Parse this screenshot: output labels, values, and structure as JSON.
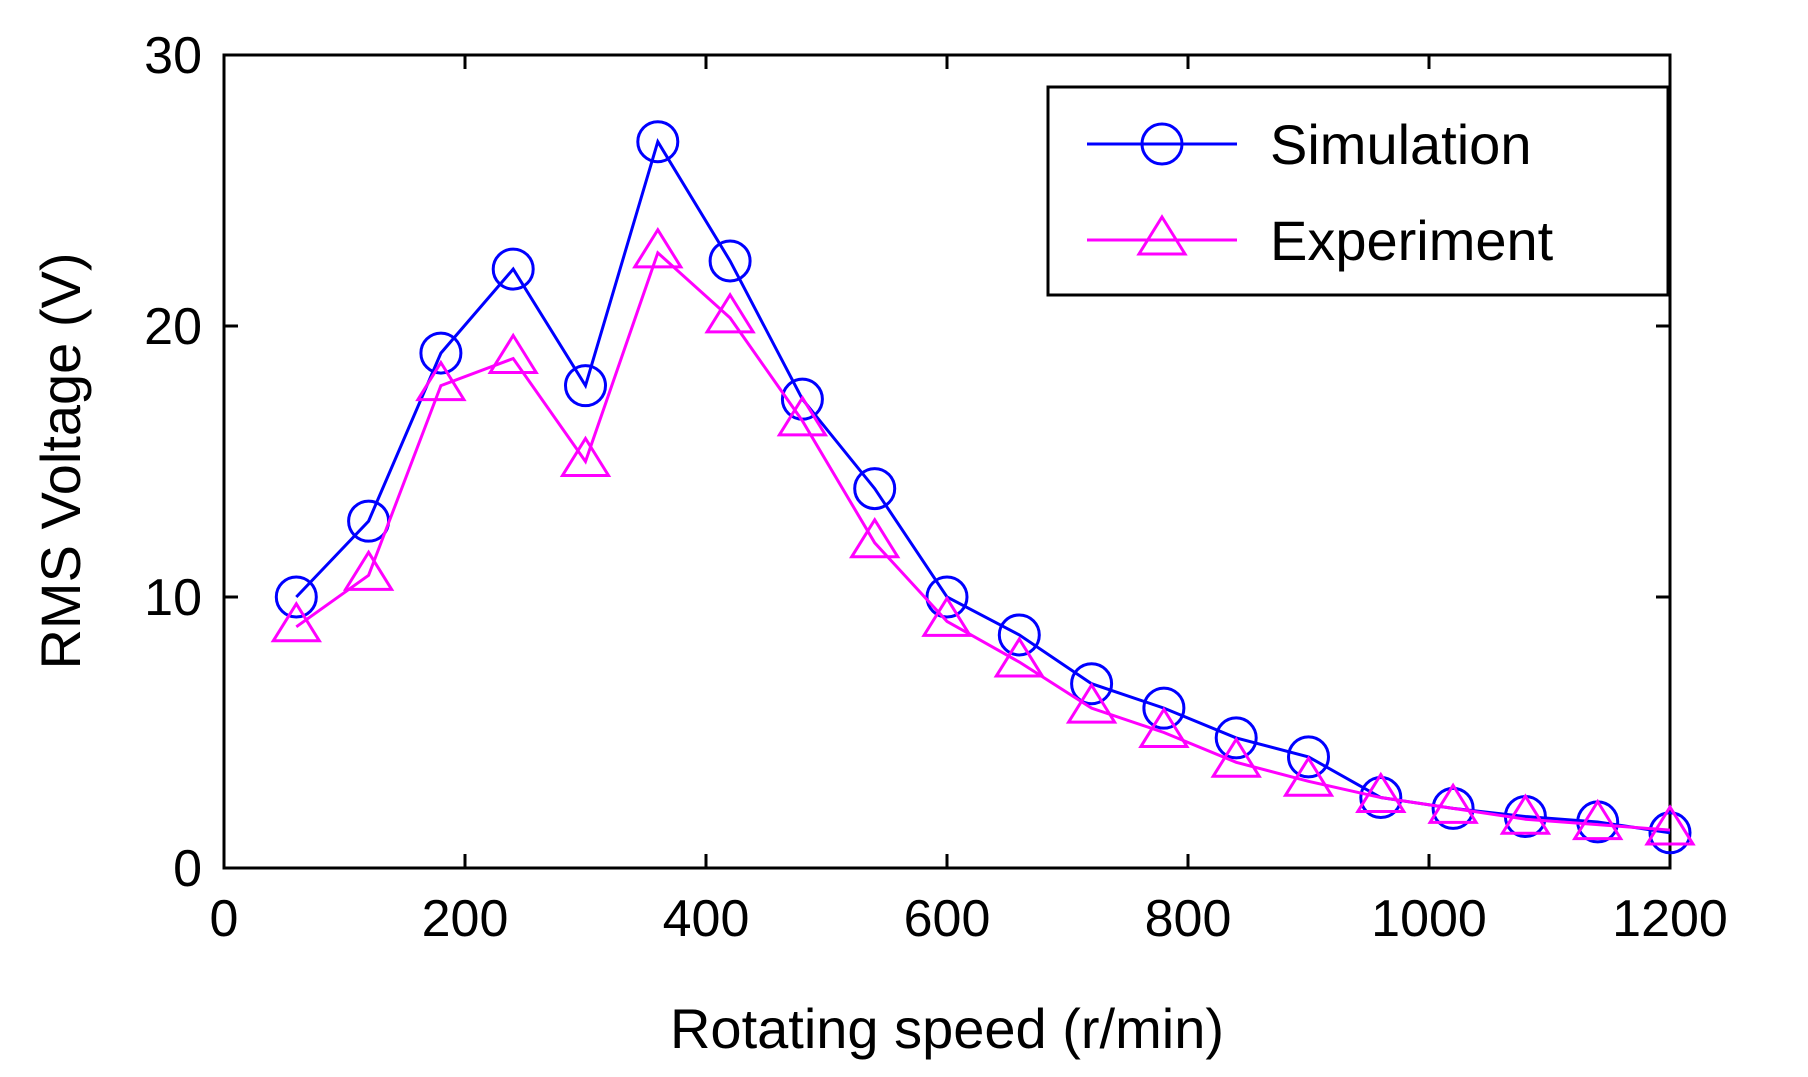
{
  "chart_data": {
    "type": "line",
    "xlabel": "Rotating speed (r/min)",
    "ylabel": "RMS Voltage (V)",
    "xlim": [
      0,
      1200
    ],
    "ylim": [
      0,
      30
    ],
    "xticks": [
      "0",
      "200",
      "400",
      "600",
      "800",
      "1000",
      "1200"
    ],
    "yticks": [
      "0",
      "10",
      "20",
      "30"
    ],
    "grid": false,
    "legend_position": "top-right",
    "series": [
      {
        "name": "Simulation",
        "color": "#0000ff",
        "marker": "circle",
        "x": [
          60,
          120,
          180,
          240,
          300,
          360,
          420,
          480,
          540,
          600,
          660,
          720,
          780,
          840,
          900,
          960,
          1020,
          1080,
          1140,
          1200
        ],
        "y": [
          10.0,
          12.8,
          19.0,
          22.1,
          17.8,
          26.8,
          22.4,
          17.3,
          14.0,
          10.0,
          8.6,
          6.8,
          5.9,
          4.8,
          4.1,
          2.6,
          2.2,
          1.9,
          1.7,
          1.3
        ]
      },
      {
        "name": "Experiment",
        "color": "#ff00ff",
        "marker": "triangle",
        "x": [
          60,
          120,
          180,
          240,
          300,
          360,
          420,
          480,
          540,
          600,
          660,
          720,
          780,
          840,
          900,
          960,
          1020,
          1080,
          1140,
          1200
        ],
        "y": [
          8.9,
          10.8,
          17.8,
          18.8,
          15.0,
          22.7,
          20.3,
          16.5,
          12.0,
          9.1,
          7.6,
          5.9,
          5.0,
          3.9,
          3.2,
          2.6,
          2.2,
          1.8,
          1.6,
          1.4
        ]
      }
    ]
  }
}
